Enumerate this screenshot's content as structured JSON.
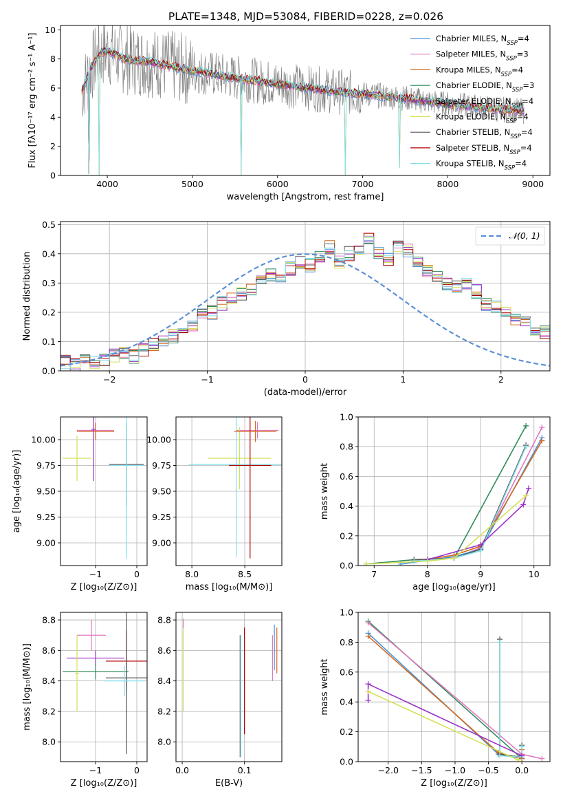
{
  "figure_title": "PLATE=1348, MJD=53084, FIBERID=0228, z=0.026",
  "colors": {
    "chabrier_miles": "#4a90d9",
    "salpeter_miles": "#e377c2",
    "kroupa_miles": "#d2691e",
    "chabrier_elodie": "#2e8b57",
    "salpeter_elodie": "#9b30c8",
    "kroupa_elodie": "#d4e157",
    "chabrier_stelib": "#555555",
    "salpeter_stelib": "#b00000",
    "kroupa_stelib": "#80deea",
    "data": "#808080",
    "normal": "#5b8fd6"
  },
  "chart_data": [
    {
      "type": "line",
      "id": "spectrum",
      "xlabel": "wavelength [Angstrom, rest frame]",
      "ylabel": "Flux [fλ10⁻¹⁷ erg cm⁻² s⁻¹ A⁻¹]",
      "xlim": [
        3450,
        9200
      ],
      "ylim": [
        0,
        10.3
      ],
      "xticks": [
        "4000",
        "5000",
        "6000",
        "7000",
        "8000",
        "9000"
      ],
      "yticks": [
        "0",
        "2",
        "4",
        "6",
        "8",
        "10"
      ],
      "grid": false,
      "legend_position": "top-right",
      "legend": [
        "Chabrier MILES, N_SSP=4",
        "Salpeter MILES, N_SSP=3",
        "Kroupa MILES, N_SSP=4",
        "Chabrier ELODIE, N_SSP=3",
        "Salpeter ELODIE, N_SSP=4",
        "Kroupa ELODIE, N_SSP=4",
        "Chabrier STELIB, N_SSP=4",
        "Salpeter STELIB, N_SSP=4",
        "Kroupa STELIB, N_SSP=4"
      ],
      "continuum": [
        {
          "x": 3700,
          "y": 5.8
        },
        {
          "x": 3800,
          "y": 7.3
        },
        {
          "x": 3900,
          "y": 8.3
        },
        {
          "x": 4000,
          "y": 8.6
        },
        {
          "x": 4200,
          "y": 8.0
        },
        {
          "x": 4500,
          "y": 7.8
        },
        {
          "x": 5000,
          "y": 7.2
        },
        {
          "x": 5500,
          "y": 6.7
        },
        {
          "x": 6000,
          "y": 6.3
        },
        {
          "x": 6500,
          "y": 5.9
        },
        {
          "x": 7000,
          "y": 5.6
        },
        {
          "x": 7500,
          "y": 5.3
        },
        {
          "x": 8000,
          "y": 4.9
        },
        {
          "x": 8500,
          "y": 4.6
        },
        {
          "x": 8900,
          "y": 4.4
        }
      ],
      "dips": [
        {
          "x": 3780,
          "y": 0.1
        },
        {
          "x": 3905,
          "y": 0.0
        },
        {
          "x": 5570,
          "y": 0.0
        },
        {
          "x": 6800,
          "y": 0.0
        },
        {
          "x": 7430,
          "y": 0.5
        }
      ]
    },
    {
      "type": "line",
      "id": "residual-histogram",
      "xlabel": "(data-model)/error",
      "ylabel": "Normed distribution",
      "xlim": [
        -2.5,
        2.5
      ],
      "ylim": [
        0,
        0.51
      ],
      "xticks": [
        "−2",
        "−1",
        "0",
        "1",
        "2"
      ],
      "yticks": [
        "0.0",
        "0.1",
        "0.2",
        "0.3",
        "0.4",
        "0.5"
      ],
      "grid": true,
      "legend_position": "top-right",
      "legend": [
        "𝒩(0, 1)"
      ],
      "bin_width": 0.1,
      "bins_start": -2.5,
      "histogram": [
        0.03,
        0.02,
        0.04,
        0.03,
        0.04,
        0.05,
        0.06,
        0.05,
        0.07,
        0.09,
        0.1,
        0.12,
        0.15,
        0.16,
        0.19,
        0.2,
        0.23,
        0.25,
        0.26,
        0.28,
        0.3,
        0.33,
        0.32,
        0.35,
        0.37,
        0.36,
        0.39,
        0.42,
        0.37,
        0.4,
        0.41,
        0.45,
        0.4,
        0.38,
        0.43,
        0.41,
        0.37,
        0.34,
        0.33,
        0.3,
        0.29,
        0.3,
        0.27,
        0.23,
        0.22,
        0.2,
        0.18,
        0.17,
        0.14,
        0.13
      ]
    },
    {
      "type": "scatter",
      "id": "age-vs-metallicity",
      "xlabel": "Z [log₁₀(Z/Z⊙)]",
      "ylabel": "age  [log₁₀(age/yr)]",
      "xlim": [
        -1.85,
        0.25
      ],
      "ylim": [
        8.78,
        10.22
      ],
      "xticks": [
        "−1",
        "0"
      ],
      "yticks": [
        "9.00",
        "9.25",
        "9.50",
        "9.75",
        "10.00"
      ],
      "grid": true,
      "points": [
        {
          "x": -1.0,
          "y": 10.09,
          "xerr": 0.45,
          "yerr": 0.08,
          "c": "salpeter_miles"
        },
        {
          "x": -1.0,
          "y": 10.08,
          "xerr": 0.45,
          "yerr": 0.08,
          "c": "kroupa_miles"
        },
        {
          "x": -1.45,
          "y": 9.82,
          "xerr": 0.35,
          "yerr": 0.22,
          "c": "kroupa_elodie"
        },
        {
          "x": -0.25,
          "y": 9.76,
          "xerr": 0.42,
          "yerr": 0.4,
          "c": "chabrier_stelib"
        },
        {
          "x": -0.25,
          "y": 9.75,
          "xerr": 0.42,
          "yerr": 0.9,
          "c": "kroupa_stelib"
        },
        {
          "x": -1.05,
          "y": 10.1,
          "xerr": 0.05,
          "yerr": 0.5,
          "c": "salpeter_elodie"
        }
      ]
    },
    {
      "type": "scatter",
      "id": "age-vs-mass",
      "xlabel": "mass [log₁₀(M/M⊙)]",
      "ylabel": "",
      "xlim": [
        7.85,
        8.85
      ],
      "ylim": [
        8.78,
        10.22
      ],
      "xticks": [
        "8.0",
        "8.5"
      ],
      "yticks": [
        "9.00",
        "9.25",
        "9.50",
        "9.75",
        "10.00"
      ],
      "grid": true,
      "points": [
        {
          "x": 8.62,
          "y": 10.09,
          "xerr": 0.2,
          "yerr": 0.08,
          "c": "salpeter_miles"
        },
        {
          "x": 8.45,
          "y": 9.82,
          "xerr": 0.3,
          "yerr": 0.3,
          "c": "kroupa_elodie"
        },
        {
          "x": 8.42,
          "y": 9.76,
          "xerr": 0.45,
          "yerr": 0.9,
          "c": "kroupa_stelib"
        },
        {
          "x": 8.55,
          "y": 9.75,
          "xerr": 0.2,
          "yerr": 0.9,
          "c": "salpeter_stelib"
        },
        {
          "x": 8.6,
          "y": 10.08,
          "xerr": 0.2,
          "yerr": 0.1,
          "c": "kroupa_miles"
        }
      ]
    },
    {
      "type": "line",
      "id": "mass-weight-vs-age",
      "xlabel": "age  [log₁₀(age/yr)]",
      "ylabel": "mass weight",
      "xlim": [
        6.7,
        10.3
      ],
      "ylim": [
        0,
        1.0
      ],
      "xticks": [
        "7",
        "8",
        "9",
        "10"
      ],
      "yticks": [
        "0.0",
        "0.2",
        "0.4",
        "0.6",
        "0.8",
        "1.0"
      ],
      "grid": true,
      "series": [
        {
          "c": "chabrier_elodie",
          "x": [
            6.85,
            7.75,
            8.5,
            9.85
          ],
          "y": [
            0.01,
            0.04,
            0.05,
            0.94
          ]
        },
        {
          "c": "salpeter_miles",
          "x": [
            7.75,
            8.5,
            9.0,
            10.15
          ],
          "y": [
            0.03,
            0.05,
            0.12,
            0.93
          ]
        },
        {
          "c": "chabrier_miles",
          "x": [
            7.5,
            8.5,
            9.0,
            10.15
          ],
          "y": [
            0.01,
            0.06,
            0.11,
            0.86
          ]
        },
        {
          "c": "kroupa_miles",
          "x": [
            7.75,
            8.5,
            9.0,
            10.15
          ],
          "y": [
            0.03,
            0.07,
            0.13,
            0.84
          ]
        },
        {
          "c": "chabrier_stelib",
          "x": [
            7.75,
            8.5,
            9.0,
            9.85
          ],
          "y": [
            0.04,
            0.05,
            0.11,
            0.81
          ]
        },
        {
          "c": "kroupa_stelib",
          "x": [
            7.75,
            8.5,
            9.0,
            9.85
          ],
          "y": [
            0.03,
            0.05,
            0.1,
            0.8
          ]
        },
        {
          "c": "salpeter_elodie",
          "x": [
            8.0,
            9.0,
            9.8,
            9.9
          ],
          "y": [
            0.04,
            0.14,
            0.41,
            0.52
          ]
        },
        {
          "c": "kroupa_elodie",
          "x": [
            6.85,
            8.0,
            8.5,
            9.85
          ],
          "y": [
            0.01,
            0.03,
            0.05,
            0.47
          ]
        }
      ]
    },
    {
      "type": "scatter",
      "id": "mass-vs-metallicity",
      "xlabel": "Z [log₁₀(Z/Z⊙)]",
      "ylabel": "mass [log₁₀(M/M⊙)]",
      "xlim": [
        -1.85,
        0.25
      ],
      "ylim": [
        7.87,
        8.85
      ],
      "xticks": [
        "−1",
        "0"
      ],
      "yticks": [
        "8.0",
        "8.2",
        "8.4",
        "8.6",
        "8.8"
      ],
      "grid": true,
      "points": [
        {
          "x": -1.1,
          "y": 8.7,
          "xerr": 0.35,
          "yerr": 0.1,
          "c": "salpeter_miles"
        },
        {
          "x": -1.0,
          "y": 8.55,
          "xerr": 0.7,
          "yerr": 0.05,
          "c": "salpeter_elodie"
        },
        {
          "x": -0.25,
          "y": 8.53,
          "xerr": 0.5,
          "yerr": 0.2,
          "c": "salpeter_stelib"
        },
        {
          "x": -1.0,
          "y": 8.46,
          "xerr": 0.8,
          "yerr": 0.05,
          "c": "chabrier_elodie"
        },
        {
          "x": -0.25,
          "y": 8.42,
          "xerr": 0.5,
          "yerr": 0.5,
          "c": "chabrier_stelib"
        },
        {
          "x": -0.3,
          "y": 8.4,
          "xerr": 0.5,
          "yerr": 0.1,
          "c": "kroupa_stelib"
        },
        {
          "x": -1.45,
          "y": 8.45,
          "xerr": 0.05,
          "yerr": 0.25,
          "c": "kroupa_elodie"
        }
      ]
    },
    {
      "type": "scatter",
      "id": "mass-vs-extinction",
      "xlabel": "E(B-V)",
      "ylabel": "",
      "xlim": [
        -0.01,
        0.16
      ],
      "ylim": [
        7.87,
        8.85
      ],
      "xticks": [
        "0.0",
        "0.1"
      ],
      "yticks": [
        "8.0",
        "8.2",
        "8.4",
        "8.6",
        "8.8"
      ],
      "grid": true,
      "points": [
        {
          "x": 0.002,
          "y": 8.5,
          "yerr": 0.3,
          "c": "kroupa_elodie"
        },
        {
          "x": 0.002,
          "y": 8.78,
          "yerr": 0.03,
          "c": "salpeter_miles"
        },
        {
          "x": 0.093,
          "y": 8.3,
          "yerr": 0.4,
          "c": "chabrier_stelib"
        },
        {
          "x": 0.094,
          "y": 8.3,
          "yerr": 0.4,
          "c": "kroupa_stelib"
        },
        {
          "x": 0.1,
          "y": 8.4,
          "yerr": 0.35,
          "c": "salpeter_stelib"
        },
        {
          "x": 0.145,
          "y": 8.55,
          "yerr": 0.15,
          "c": "salpeter_miles"
        },
        {
          "x": 0.152,
          "y": 8.6,
          "yerr": 0.15,
          "c": "kroupa_miles"
        },
        {
          "x": 0.148,
          "y": 8.62,
          "yerr": 0.15,
          "c": "chabrier_miles"
        }
      ]
    },
    {
      "type": "line",
      "id": "mass-weight-vs-metallicity",
      "xlabel": "Z [log₁₀(Z/Z⊙)]",
      "ylabel": "mass weight",
      "xlim": [
        -2.45,
        0.42
      ],
      "ylim": [
        0,
        1.0
      ],
      "xticks": [
        "−2.0",
        "−1.5",
        "−1.0",
        "−0.5",
        "0.0"
      ],
      "yticks": [
        "0.0",
        "0.2",
        "0.4",
        "0.6",
        "0.8",
        "1.0"
      ],
      "grid": true,
      "series": [
        {
          "c": "chabrier_elodie",
          "x": [
            -2.3,
            0.0
          ],
          "y": [
            0.94,
            0.02
          ]
        },
        {
          "c": "salpeter_miles",
          "x": [
            -2.3,
            0.0,
            0.3
          ],
          "y": [
            0.93,
            0.05,
            0.02
          ]
        },
        {
          "c": "chabrier_miles",
          "x": [
            -2.3,
            -0.35,
            0.0,
            0.0
          ],
          "y": [
            0.86,
            0.05,
            0.02,
            0.1
          ]
        },
        {
          "c": "kroupa_miles",
          "x": [
            -2.3,
            -0.35,
            0.0,
            0.0
          ],
          "y": [
            0.84,
            0.06,
            0.02,
            0.08
          ]
        },
        {
          "c": "chabrier_stelib",
          "x": [
            -0.33,
            -0.33,
            0.0,
            0.0
          ],
          "y": [
            0.82,
            0.05,
            0.03,
            0.11
          ]
        },
        {
          "c": "kroupa_stelib",
          "x": [
            -0.33,
            -0.33,
            0.0,
            0.0
          ],
          "y": [
            0.8,
            0.04,
            0.03,
            0.1
          ]
        },
        {
          "c": "salpeter_elodie",
          "x": [
            -2.3,
            -2.3,
            0.0
          ],
          "y": [
            0.41,
            0.52,
            0.04
          ]
        },
        {
          "c": "kroupa_elodie",
          "x": [
            -2.3,
            -0.05
          ],
          "y": [
            0.47,
            0.01
          ]
        }
      ]
    }
  ]
}
